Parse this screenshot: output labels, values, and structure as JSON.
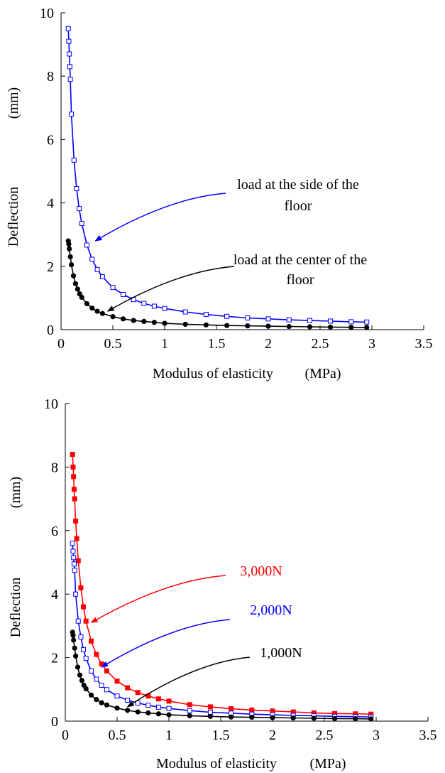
{
  "chart_data": [
    {
      "type": "scatter",
      "xlabel": "Modulus of elasticity",
      "xunit": "(MPa)",
      "ylabel": "Deflection",
      "yunit": "(mm)",
      "xlim": [
        0,
        3.5
      ],
      "ylim": [
        0,
        10
      ],
      "xticks": [
        "0",
        "0.5",
        "1",
        "1.5",
        "2",
        "2.5",
        "3",
        "3.5"
      ],
      "yticks": [
        "0",
        "2",
        "4",
        "6",
        "8",
        "10"
      ],
      "grid": false,
      "series": [
        {
          "marker": "open-square",
          "color": "#0000ff",
          "x": [
            0.07,
            0.075,
            0.08,
            0.085,
            0.09,
            0.1,
            0.125,
            0.15,
            0.175,
            0.2,
            0.25,
            0.3,
            0.35,
            0.4,
            0.5,
            0.6,
            0.7,
            0.8,
            0.9,
            1.0,
            1.2,
            1.4,
            1.6,
            1.8,
            2.0,
            2.2,
            2.4,
            2.6,
            2.8,
            2.95
          ],
          "y": [
            9.5,
            9.1,
            8.7,
            8.3,
            7.9,
            6.8,
            5.35,
            4.45,
            3.82,
            3.35,
            2.67,
            2.22,
            1.9,
            1.67,
            1.33,
            1.11,
            0.95,
            0.83,
            0.74,
            0.67,
            0.56,
            0.48,
            0.42,
            0.37,
            0.34,
            0.31,
            0.29,
            0.27,
            0.25,
            0.24
          ]
        },
        {
          "marker": "filled-circle",
          "color": "#000000",
          "x": [
            0.07,
            0.075,
            0.08,
            0.09,
            0.1,
            0.12,
            0.14,
            0.16,
            0.18,
            0.2,
            0.25,
            0.3,
            0.35,
            0.4,
            0.5,
            0.6,
            0.7,
            0.8,
            0.9,
            1.0,
            1.2,
            1.4,
            1.6,
            1.8,
            2.0,
            2.2,
            2.4,
            2.6,
            2.8,
            2.95
          ],
          "y": [
            2.8,
            2.7,
            2.55,
            2.3,
            2.05,
            1.7,
            1.45,
            1.28,
            1.13,
            1.02,
            0.82,
            0.68,
            0.58,
            0.51,
            0.41,
            0.34,
            0.29,
            0.26,
            0.23,
            0.2,
            0.17,
            0.15,
            0.13,
            0.12,
            0.11,
            0.1,
            0.09,
            0.08,
            0.075,
            0.07
          ]
        }
      ],
      "annotations": [
        {
          "lines": [
            "load at the side of the",
            "floor"
          ],
          "color": "#000000",
          "arrow_color": "#0000ff",
          "target": [
            0.33,
            2.8
          ]
        },
        {
          "lines": [
            "load at the center of the",
            "floor"
          ],
          "color": "#000000",
          "arrow_color": "#000000",
          "target": [
            0.45,
            0.58
          ]
        }
      ]
    },
    {
      "type": "scatter",
      "xlabel": "Modulus of elasticity",
      "xunit": "(MPa)",
      "ylabel": "Deflection",
      "yunit": "(mm)",
      "xlim": [
        0,
        3.5
      ],
      "ylim": [
        0,
        10
      ],
      "xticks": [
        "0",
        "0.5",
        "1",
        "1.5",
        "2",
        "2.5",
        "3",
        "3.5"
      ],
      "yticks": [
        "0",
        "2",
        "4",
        "6",
        "8",
        "10"
      ],
      "grid": false,
      "series": [
        {
          "marker": "filled-square",
          "color": "#ff0000",
          "x": [
            0.07,
            0.075,
            0.08,
            0.085,
            0.09,
            0.1,
            0.11,
            0.125,
            0.15,
            0.175,
            0.2,
            0.25,
            0.3,
            0.35,
            0.4,
            0.5,
            0.6,
            0.7,
            0.8,
            0.9,
            1.0,
            1.2,
            1.4,
            1.6,
            1.8,
            2.0,
            2.2,
            2.4,
            2.6,
            2.8,
            2.95
          ],
          "y": [
            8.4,
            8.0,
            7.7,
            7.3,
            7.0,
            6.3,
            5.75,
            5.05,
            4.2,
            3.6,
            3.15,
            2.52,
            2.1,
            1.8,
            1.58,
            1.26,
            1.05,
            0.9,
            0.79,
            0.7,
            0.63,
            0.52,
            0.45,
            0.39,
            0.35,
            0.32,
            0.29,
            0.26,
            0.24,
            0.23,
            0.22
          ]
        },
        {
          "marker": "open-square",
          "color": "#0000ff",
          "x": [
            0.07,
            0.075,
            0.08,
            0.085,
            0.09,
            0.1,
            0.125,
            0.15,
            0.175,
            0.2,
            0.25,
            0.3,
            0.35,
            0.4,
            0.5,
            0.6,
            0.7,
            0.8,
            0.9,
            1.0,
            1.2,
            1.4,
            1.6,
            1.8,
            2.0,
            2.2,
            2.4,
            2.6,
            2.8,
            2.95
          ],
          "y": [
            5.6,
            5.35,
            5.15,
            4.95,
            4.75,
            4.0,
            3.15,
            2.65,
            2.25,
            1.98,
            1.58,
            1.32,
            1.13,
            0.99,
            0.79,
            0.66,
            0.57,
            0.5,
            0.44,
            0.4,
            0.33,
            0.28,
            0.25,
            0.22,
            0.2,
            0.18,
            0.17,
            0.15,
            0.14,
            0.13
          ]
        },
        {
          "marker": "filled-circle",
          "color": "#000000",
          "x": [
            0.07,
            0.075,
            0.08,
            0.09,
            0.1,
            0.12,
            0.14,
            0.16,
            0.18,
            0.2,
            0.25,
            0.3,
            0.35,
            0.4,
            0.5,
            0.6,
            0.7,
            0.8,
            0.9,
            1.0,
            1.2,
            1.4,
            1.6,
            1.8,
            2.0,
            2.2,
            2.4,
            2.6,
            2.8,
            2.95
          ],
          "y": [
            2.8,
            2.7,
            2.55,
            2.3,
            2.05,
            1.7,
            1.45,
            1.28,
            1.13,
            1.02,
            0.82,
            0.68,
            0.58,
            0.51,
            0.41,
            0.34,
            0.29,
            0.26,
            0.23,
            0.2,
            0.17,
            0.15,
            0.13,
            0.12,
            0.11,
            0.1,
            0.09,
            0.08,
            0.075,
            0.07
          ]
        }
      ],
      "annotations": [
        {
          "lines": [
            "3,000N"
          ],
          "color": "#ff0000",
          "arrow_color": "#ff0000",
          "target": [
            0.25,
            3.1
          ]
        },
        {
          "lines": [
            "2,000N"
          ],
          "color": "#0000ff",
          "arrow_color": "#0000ff",
          "target": [
            0.35,
            1.7
          ]
        },
        {
          "lines": [
            "1,000N"
          ],
          "color": "#000000",
          "arrow_color": "#000000",
          "target": [
            0.6,
            0.45
          ]
        }
      ]
    }
  ]
}
